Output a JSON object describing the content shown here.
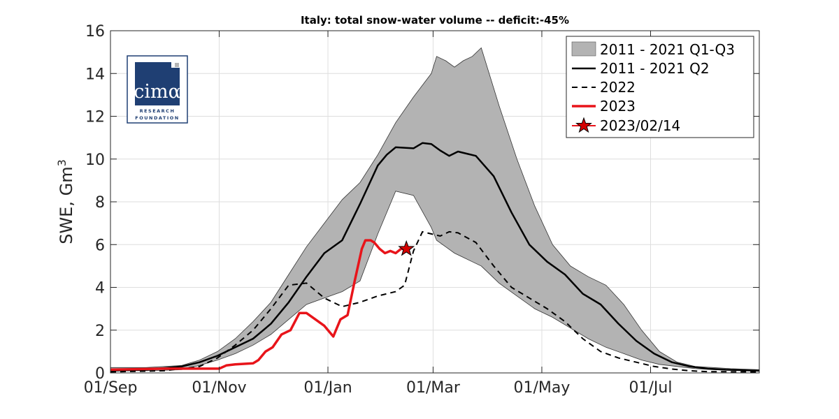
{
  "chart_data": {
    "type": "area",
    "title": "Italy: total snow-water volume -- deficit:-45%",
    "xlabel": "",
    "ylabel": "SWE, Gm",
    "ylabel_superscript": "3",
    "ylim": [
      0,
      16
    ],
    "yticks": [
      0,
      2,
      4,
      6,
      8,
      10,
      12,
      14,
      16
    ],
    "xlim": [
      "2022-09-01",
      "2023-08-31"
    ],
    "xticks": [
      {
        "date": "2022-09-01",
        "label": "01/Sep"
      },
      {
        "date": "2022-11-01",
        "label": "01/Nov"
      },
      {
        "date": "2023-01-01",
        "label": "01/Jan"
      },
      {
        "date": "2023-03-01",
        "label": "01/Mar"
      },
      {
        "date": "2023-05-01",
        "label": "01/May"
      },
      {
        "date": "2023-07-01",
        "label": "01/Jul"
      }
    ],
    "grid": true,
    "legend_position": "top-right",
    "colors": {
      "band": "#b3b3b3",
      "median": "#000000",
      "prev_year": "#000000",
      "current": "#e8141a",
      "marker": "#d40000"
    },
    "series": [
      {
        "name": "2011 - 2021 Q1-Q3",
        "style": "band",
        "x": [
          "2022-09-01",
          "2022-09-21",
          "2022-10-11",
          "2022-10-21",
          "2022-10-31",
          "2022-11-10",
          "2022-11-20",
          "2022-11-30",
          "2022-12-10",
          "2022-12-20",
          "2022-12-30",
          "2023-01-09",
          "2023-01-19",
          "2023-01-29",
          "2023-02-08",
          "2023-02-18",
          "2023-02-28",
          "2023-03-03",
          "2023-03-08",
          "2023-03-13",
          "2023-03-18",
          "2023-03-23",
          "2023-03-28",
          "2023-04-07",
          "2023-04-17",
          "2023-04-27",
          "2023-05-07",
          "2023-05-17",
          "2023-05-27",
          "2023-06-06",
          "2023-06-16",
          "2023-06-26",
          "2023-07-06",
          "2023-07-16",
          "2023-07-26",
          "2023-08-05",
          "2023-08-15",
          "2023-08-31"
        ],
        "upper": [
          0.25,
          0.25,
          0.35,
          0.6,
          1.0,
          1.6,
          2.4,
          3.3,
          4.6,
          5.9,
          7.0,
          8.1,
          8.9,
          10.2,
          11.7,
          12.9,
          14.0,
          14.8,
          14.6,
          14.3,
          14.6,
          14.8,
          15.2,
          12.5,
          10.0,
          7.8,
          6.0,
          5.0,
          4.5,
          4.1,
          3.2,
          2.0,
          1.0,
          0.5,
          0.3,
          0.25,
          0.2,
          0.15
        ],
        "lower": [
          0.1,
          0.1,
          0.15,
          0.35,
          0.6,
          0.9,
          1.3,
          1.8,
          2.5,
          3.2,
          3.5,
          3.8,
          4.3,
          6.5,
          8.5,
          8.3,
          6.8,
          6.2,
          5.9,
          5.6,
          5.4,
          5.2,
          5.0,
          4.2,
          3.6,
          3.0,
          2.6,
          2.1,
          1.6,
          1.2,
          0.9,
          0.6,
          0.4,
          0.3,
          0.2,
          0.15,
          0.12,
          0.1
        ]
      },
      {
        "name": "2011 - 2021 Q2",
        "style": "solid",
        "x": [
          "2022-09-01",
          "2022-09-21",
          "2022-10-11",
          "2022-10-21",
          "2022-10-31",
          "2022-11-10",
          "2022-11-20",
          "2022-11-30",
          "2022-12-10",
          "2022-12-20",
          "2022-12-30",
          "2023-01-09",
          "2023-01-19",
          "2023-01-29",
          "2023-02-03",
          "2023-02-08",
          "2023-02-18",
          "2023-02-23",
          "2023-02-28",
          "2023-03-05",
          "2023-03-10",
          "2023-03-15",
          "2023-03-20",
          "2023-03-25",
          "2023-04-04",
          "2023-04-14",
          "2023-04-24",
          "2023-05-04",
          "2023-05-14",
          "2023-05-24",
          "2023-06-03",
          "2023-06-13",
          "2023-06-23",
          "2023-07-03",
          "2023-07-13",
          "2023-07-23",
          "2023-08-02",
          "2023-08-12",
          "2023-08-31"
        ],
        "y": [
          0.1,
          0.15,
          0.3,
          0.5,
          0.8,
          1.2,
          1.6,
          2.3,
          3.3,
          4.5,
          5.6,
          6.2,
          7.9,
          9.7,
          10.2,
          10.55,
          10.5,
          10.75,
          10.7,
          10.4,
          10.15,
          10.35,
          10.25,
          10.15,
          9.2,
          7.5,
          6.0,
          5.2,
          4.6,
          3.7,
          3.2,
          2.3,
          1.5,
          0.9,
          0.5,
          0.3,
          0.2,
          0.15,
          0.1
        ]
      },
      {
        "name": "2022",
        "style": "dashed",
        "x": [
          "2022-09-01",
          "2022-10-01",
          "2022-10-21",
          "2022-10-31",
          "2022-11-10",
          "2022-11-20",
          "2022-11-30",
          "2022-12-10",
          "2022-12-20",
          "2022-12-30",
          "2023-01-09",
          "2023-01-19",
          "2023-01-29",
          "2023-02-08",
          "2023-02-13",
          "2023-02-18",
          "2023-02-23",
          "2023-03-05",
          "2023-03-10",
          "2023-03-15",
          "2023-03-25",
          "2023-04-04",
          "2023-04-14",
          "2023-04-24",
          "2023-05-04",
          "2023-05-14",
          "2023-05-24",
          "2023-06-03",
          "2023-06-13",
          "2023-06-23",
          "2023-07-03",
          "2023-07-13",
          "2023-07-23",
          "2023-08-02",
          "2023-08-31"
        ],
        "y": [
          0.05,
          0.1,
          0.3,
          0.7,
          1.3,
          2.0,
          3.0,
          4.1,
          4.2,
          3.5,
          3.1,
          3.3,
          3.6,
          3.8,
          4.1,
          5.7,
          6.6,
          6.4,
          6.6,
          6.55,
          6.1,
          5.0,
          4.0,
          3.5,
          3.0,
          2.4,
          1.6,
          1.0,
          0.7,
          0.5,
          0.3,
          0.18,
          0.1,
          0.06,
          0.05
        ]
      },
      {
        "name": "2023",
        "style": "solid-red",
        "x": [
          "2022-09-01",
          "2022-10-01",
          "2022-10-21",
          "2022-11-01",
          "2022-11-05",
          "2022-11-10",
          "2022-11-20",
          "2022-11-23",
          "2022-11-27",
          "2022-12-01",
          "2022-12-06",
          "2022-12-11",
          "2022-12-16",
          "2022-12-20",
          "2022-12-25",
          "2022-12-30",
          "2023-01-04",
          "2023-01-08",
          "2023-01-12",
          "2023-01-16",
          "2023-01-20",
          "2023-01-22",
          "2023-01-25",
          "2023-01-27",
          "2023-01-30",
          "2023-02-02",
          "2023-02-05",
          "2023-02-08",
          "2023-02-11",
          "2023-02-14"
        ],
        "y": [
          0.15,
          0.2,
          0.2,
          0.2,
          0.35,
          0.4,
          0.45,
          0.6,
          1.0,
          1.2,
          1.8,
          2.0,
          2.8,
          2.8,
          2.5,
          2.2,
          1.7,
          2.5,
          2.7,
          4.3,
          5.8,
          6.2,
          6.2,
          6.1,
          5.8,
          5.6,
          5.7,
          5.6,
          5.8,
          5.8
        ]
      },
      {
        "name": "2023/02/14",
        "style": "marker",
        "x": [
          "2023-02-14"
        ],
        "y": [
          5.8
        ]
      }
    ]
  },
  "logo": {
    "word": "cimα",
    "line1": "RESEARCH",
    "line2": "FOUNDATION"
  }
}
